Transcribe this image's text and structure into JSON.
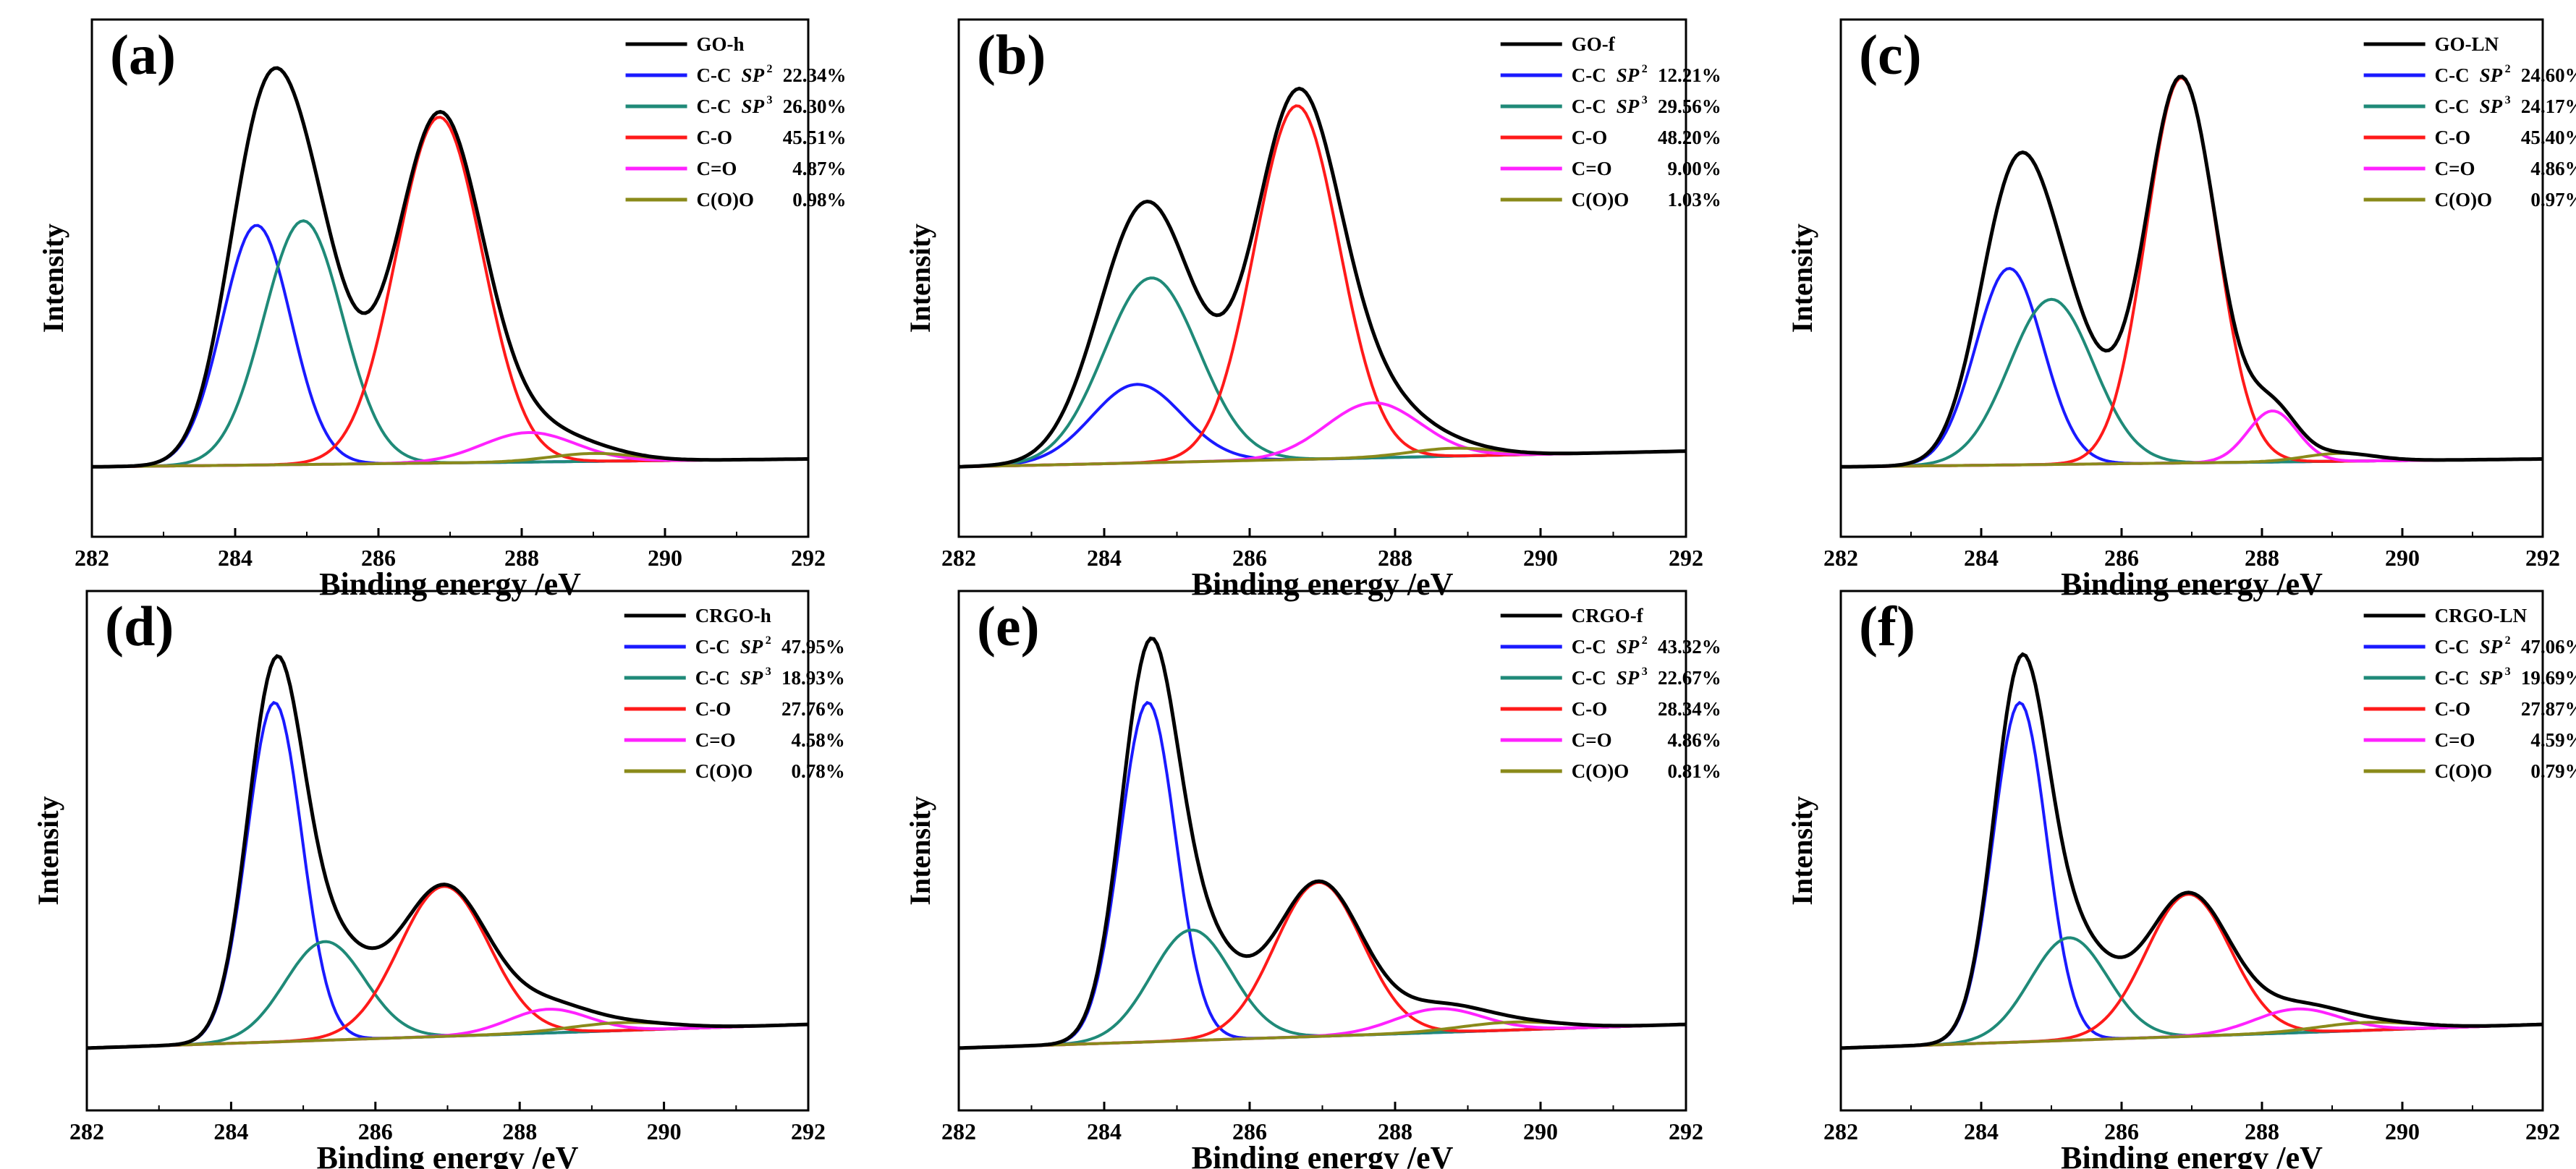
{
  "figure": {
    "common": {
      "xlabel": "Binding energy /eV",
      "ylabel": "Intensity",
      "xticks": [
        "282",
        "284",
        "286",
        "288",
        "290",
        "292"
      ]
    },
    "colors": {
      "total": "#000000",
      "sp2": "#1a1aff",
      "sp3": "#1f8a78",
      "co": "#ff1a1a",
      "ceo": "#ff22ff",
      "cooo": "#8a8a1a",
      "baseline_magenta": "#ff22ff"
    }
  },
  "chart_data": [
    {
      "panel": "(a)",
      "type": "line",
      "title": "(a)",
      "xlabel": "Binding energy /eV",
      "ylabel": "Intensity",
      "xlim": [
        282,
        292
      ],
      "ylim": [
        0,
        1
      ],
      "xticks": [
        282,
        284,
        286,
        288,
        290,
        292
      ],
      "background": [
        0.02,
        0.04
      ],
      "legend": [
        {
          "key": "total",
          "label": "GO-h",
          "value": ""
        },
        {
          "key": "sp2",
          "label": "C-C",
          "sup": "2",
          "value": "22.34%"
        },
        {
          "key": "sp3",
          "label": "C-C",
          "sup": "3",
          "value": "26.30%"
        },
        {
          "key": "co",
          "label": "C-O",
          "value": "45.51%"
        },
        {
          "key": "ceo",
          "label": "C=O",
          "value": "4.87%"
        },
        {
          "key": "cooo",
          "label": "C(O)O",
          "value": "0.98%"
        }
      ],
      "peaks": [
        {
          "key": "sp2",
          "center": 284.3,
          "sigma": 0.48,
          "amp": 0.61
        },
        {
          "key": "sp3",
          "center": 284.95,
          "sigma": 0.55,
          "amp": 0.62
        },
        {
          "key": "co",
          "center": 286.85,
          "sigma": 0.6,
          "amp": 0.88
        },
        {
          "key": "ceo",
          "center": 288.1,
          "sigma": 0.65,
          "amp": 0.075
        },
        {
          "key": "cooo",
          "center": 289.0,
          "sigma": 0.6,
          "amp": 0.02
        }
      ]
    },
    {
      "panel": "(b)",
      "type": "line",
      "title": "(b)",
      "xlabel": "Binding energy /eV",
      "ylabel": "Intensity",
      "xlim": [
        282,
        292
      ],
      "ylim": [
        0,
        1
      ],
      "xticks": [
        282,
        284,
        286,
        288,
        290,
        292
      ],
      "background": [
        0.02,
        0.06
      ],
      "legend": [
        {
          "key": "total",
          "label": "GO-f",
          "value": ""
        },
        {
          "key": "sp2",
          "label": "C-C",
          "sup": "2",
          "value": "12.21%"
        },
        {
          "key": "sp3",
          "label": "C-C",
          "sup": "3",
          "value": "29.56%"
        },
        {
          "key": "co",
          "label": "C-O",
          "value": "48.20%"
        },
        {
          "key": "ceo",
          "label": "C=O",
          "value": "9.00%"
        },
        {
          "key": "cooo",
          "label": "C(O)O",
          "value": "1.03%"
        }
      ],
      "peaks": [
        {
          "key": "sp2",
          "center": 284.45,
          "sigma": 0.62,
          "amp": 0.2
        },
        {
          "key": "sp3",
          "center": 284.65,
          "sigma": 0.65,
          "amp": 0.47
        },
        {
          "key": "co",
          "center": 286.65,
          "sigma": 0.58,
          "amp": 0.9
        },
        {
          "key": "ceo",
          "center": 287.7,
          "sigma": 0.65,
          "amp": 0.14
        },
        {
          "key": "cooo",
          "center": 288.8,
          "sigma": 0.6,
          "amp": 0.02
        }
      ]
    },
    {
      "panel": "(c)",
      "type": "line",
      "title": "(c)",
      "xlabel": "Binding energy /eV",
      "ylabel": "Intensity",
      "xlim": [
        282,
        292
      ],
      "ylim": [
        0,
        1
      ],
      "xticks": [
        282,
        284,
        286,
        288,
        290,
        292
      ],
      "background": [
        0.02,
        0.04
      ],
      "baseline_color": "baseline_magenta",
      "legend": [
        {
          "key": "total",
          "label": "GO-LN",
          "value": ""
        },
        {
          "key": "sp2",
          "label": "C-C",
          "sup": "2",
          "value": "24.60%"
        },
        {
          "key": "sp3",
          "label": "C-C",
          "sup": "3",
          "value": "24.17%"
        },
        {
          "key": "co",
          "label": "C-O",
          "value": "45.40%"
        },
        {
          "key": "ceo",
          "label": "C=O",
          "value": "4.86%"
        },
        {
          "key": "cooo",
          "label": "C(O)O",
          "value": "0.97%"
        }
      ],
      "peaks": [
        {
          "key": "sp2",
          "center": 284.4,
          "sigma": 0.48,
          "amp": 0.5
        },
        {
          "key": "sp3",
          "center": 285.0,
          "sigma": 0.6,
          "amp": 0.42
        },
        {
          "key": "co",
          "center": 286.85,
          "sigma": 0.5,
          "amp": 0.98
        },
        {
          "key": "ceo",
          "center": 288.15,
          "sigma": 0.35,
          "amp": 0.13
        },
        {
          "key": "cooo",
          "center": 289.1,
          "sigma": 0.5,
          "amp": 0.02
        }
      ]
    },
    {
      "panel": "(d)",
      "type": "line",
      "title": "(d)",
      "xlabel": "Binding energy /eV",
      "ylabel": "Intensity",
      "xlim": [
        282,
        292
      ],
      "ylim": [
        0,
        1
      ],
      "xticks": [
        282,
        284,
        286,
        288,
        290,
        292
      ],
      "background": [
        0.0,
        0.06
      ],
      "legend": [
        {
          "key": "total",
          "label": "CRGO-h",
          "value": ""
        },
        {
          "key": "sp2",
          "label": "C-C",
          "sup": "2",
          "value": "47.95%"
        },
        {
          "key": "sp3",
          "label": "C-C",
          "sup": "3",
          "value": "18.93%"
        },
        {
          "key": "co",
          "label": "C-O",
          "value": "27.76%"
        },
        {
          "key": "ceo",
          "label": "C=O",
          "value": "4.58%"
        },
        {
          "key": "cooo",
          "label": "C(O)O",
          "value": "0.78%"
        }
      ],
      "peaks": [
        {
          "key": "sp2",
          "center": 284.6,
          "sigma": 0.38,
          "amp": 0.86
        },
        {
          "key": "sp3",
          "center": 285.3,
          "sigma": 0.55,
          "amp": 0.25
        },
        {
          "key": "co",
          "center": 286.95,
          "sigma": 0.62,
          "amp": 0.38
        },
        {
          "key": "ceo",
          "center": 288.4,
          "sigma": 0.55,
          "amp": 0.06
        },
        {
          "key": "cooo",
          "center": 289.4,
          "sigma": 0.7,
          "amp": 0.02
        }
      ]
    },
    {
      "panel": "(e)",
      "type": "line",
      "title": "(e)",
      "xlabel": "Binding energy /eV",
      "ylabel": "Intensity",
      "xlim": [
        282,
        292
      ],
      "ylim": [
        0,
        1
      ],
      "xticks": [
        282,
        284,
        286,
        288,
        290,
        292
      ],
      "background": [
        0.0,
        0.06
      ],
      "legend": [
        {
          "key": "total",
          "label": "CRGO-f",
          "value": ""
        },
        {
          "key": "sp2",
          "label": "C-C",
          "sup": "2",
          "value": "43.32%"
        },
        {
          "key": "sp3",
          "label": "C-C",
          "sup": "3",
          "value": "22.67%"
        },
        {
          "key": "co",
          "label": "C-O",
          "value": "28.34%"
        },
        {
          "key": "ceo",
          "label": "C=O",
          "value": "4.86%"
        },
        {
          "key": "cooo",
          "label": "C(O)O",
          "value": "0.81%"
        }
      ],
      "peaks": [
        {
          "key": "sp2",
          "center": 284.6,
          "sigma": 0.38,
          "amp": 0.86
        },
        {
          "key": "sp3",
          "center": 285.2,
          "sigma": 0.55,
          "amp": 0.28
        },
        {
          "key": "co",
          "center": 286.95,
          "sigma": 0.6,
          "amp": 0.39
        },
        {
          "key": "ceo",
          "center": 288.6,
          "sigma": 0.6,
          "amp": 0.06
        },
        {
          "key": "cooo",
          "center": 289.6,
          "sigma": 0.7,
          "amp": 0.02
        }
      ]
    },
    {
      "panel": "(f)",
      "type": "line",
      "title": "(f)",
      "xlabel": "Binding energy /eV",
      "ylabel": "Intensity",
      "xlim": [
        282,
        292
      ],
      "ylim": [
        0,
        1
      ],
      "xticks": [
        282,
        284,
        286,
        288,
        290,
        292
      ],
      "background": [
        0.0,
        0.06
      ],
      "legend": [
        {
          "key": "total",
          "label": "CRGO-LN",
          "value": ""
        },
        {
          "key": "sp2",
          "label": "C-C",
          "sup": "2",
          "value": "47.06%"
        },
        {
          "key": "sp3",
          "label": "C-C",
          "sup": "3",
          "value": "19.69%"
        },
        {
          "key": "co",
          "label": "C-O",
          "value": "27.87%"
        },
        {
          "key": "ceo",
          "label": "C=O",
          "value": "4.59%"
        },
        {
          "key": "cooo",
          "label": "C(O)O",
          "value": "0.79%"
        }
      ],
      "peaks": [
        {
          "key": "sp2",
          "center": 284.55,
          "sigma": 0.38,
          "amp": 0.86
        },
        {
          "key": "sp3",
          "center": 285.25,
          "sigma": 0.55,
          "amp": 0.26
        },
        {
          "key": "co",
          "center": 286.95,
          "sigma": 0.6,
          "amp": 0.36
        },
        {
          "key": "ceo",
          "center": 288.5,
          "sigma": 0.6,
          "amp": 0.06
        },
        {
          "key": "cooo",
          "center": 289.5,
          "sigma": 0.7,
          "amp": 0.02
        }
      ]
    }
  ]
}
